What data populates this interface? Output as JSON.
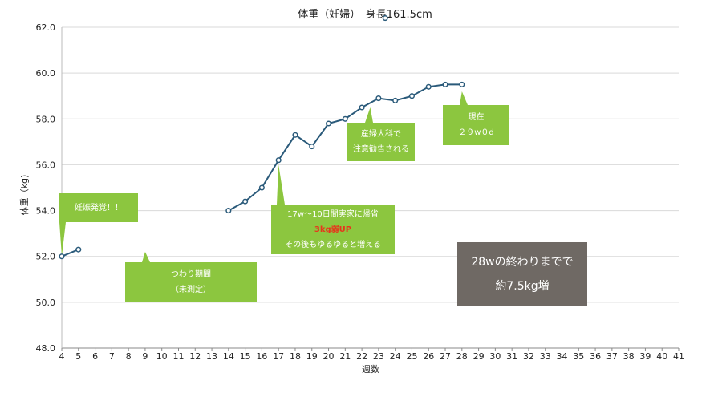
{
  "chart_data": {
    "type": "line",
    "title": "体重（妊婦）　身長161.5cm",
    "xlabel": "週数",
    "ylabel": "体重（kg)",
    "xlim": [
      4,
      41
    ],
    "ylim": [
      48,
      62
    ],
    "xticks": [
      4,
      5,
      6,
      7,
      8,
      9,
      10,
      11,
      12,
      13,
      14,
      15,
      16,
      17,
      18,
      19,
      20,
      21,
      22,
      23,
      24,
      25,
      26,
      27,
      28,
      29,
      30,
      31,
      32,
      33,
      34,
      35,
      36,
      37,
      38,
      39,
      40,
      41
    ],
    "yticks": [
      "48.0",
      "50.0",
      "52.0",
      "54.0",
      "56.0",
      "58.0",
      "60.0",
      "62.0"
    ],
    "grid": "horizontal",
    "series": [
      {
        "color": "#2a5a7a",
        "segments": [
          [
            [
              4,
              52.0
            ],
            [
              5,
              52.3
            ]
          ],
          [
            [
              14,
              54.0
            ],
            [
              15,
              54.4
            ],
            [
              16,
              55.0
            ],
            [
              17,
              56.2
            ],
            [
              18,
              57.3
            ],
            [
              19,
              56.8
            ],
            [
              20,
              57.8
            ],
            [
              21,
              58.0
            ],
            [
              22,
              58.5
            ],
            [
              23,
              58.9
            ],
            [
              24,
              58.8
            ],
            [
              25,
              59.0
            ],
            [
              26,
              59.4
            ],
            [
              27,
              59.5
            ],
            [
              28,
              59.5
            ]
          ]
        ],
        "marker_above_range": {
          "x": 23.4,
          "y": 62.4
        }
      }
    ],
    "annotations": {
      "a1": {
        "lines": [
          "妊娠発覚！！"
        ],
        "x": 4,
        "y": 52.0
      },
      "a2": {
        "lines": [
          "つわり期間",
          "（未測定）"
        ],
        "x": 9,
        "y": 52.2
      },
      "a3": {
        "line1": "17w〜10日間実家に帰省",
        "line2": "3kg弱UP",
        "line3": "その後もゆるゆると増える",
        "x": 17,
        "y": 56.0
      },
      "a4": {
        "lines": [
          "産婦人科で",
          "注意勧告される"
        ],
        "x": 22.5,
        "y": 58.5
      },
      "a5": {
        "lines": [
          "現在",
          "２９w０d"
        ],
        "x": 28,
        "y": 59.2
      }
    },
    "summary": {
      "lines": [
        "28wの終わりまでで",
        "約7.5kg増"
      ]
    }
  },
  "colors": {
    "line": "#2a5a7a",
    "callout": "#8cc63f",
    "summary": "#6f6964",
    "highlight": "#e8341c",
    "grid": "#d9d9d9"
  }
}
